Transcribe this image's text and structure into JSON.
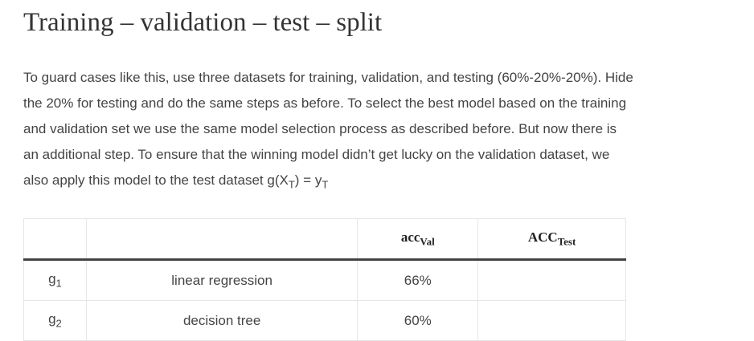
{
  "title": "Training – validation – test – split",
  "paragraph": {
    "text": "To guard cases like this, use three datasets for training, validation, and testing (60%-20%-20%). Hide the 20% for testing and do the same steps as before. To select the best model based on the training and validation set we use the same model selection process as described before. But now there is an additional step. To ensure that the winning model didn’t get lucky on the validation dataset, we also apply this model to the test dataset",
    "formula": {
      "a": "g(X",
      "a_sub": "T",
      "b": ") = y",
      "b_sub": "T"
    }
  },
  "table": {
    "header": [
      {
        "base": "acc",
        "sub": "Val"
      },
      {
        "base": "ACC",
        "sub": "Test"
      }
    ],
    "rows": [
      {
        "model": {
          "base": "g",
          "sub": "1"
        },
        "name": "linear regression",
        "acc": "66%"
      },
      {
        "model": {
          "base": "g",
          "sub": "2"
        },
        "name": "decision tree",
        "acc": "60%"
      }
    ]
  }
}
